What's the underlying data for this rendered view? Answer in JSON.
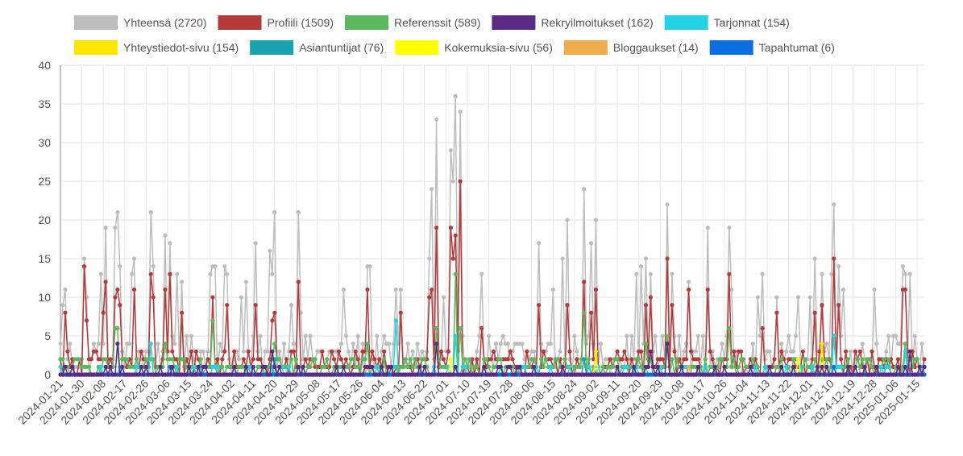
{
  "chart_data": {
    "type": "line",
    "title": "",
    "xlabel": "",
    "ylabel": "",
    "ylim": [
      0,
      40
    ],
    "y_ticks": [
      "0",
      "5",
      "10",
      "15",
      "20",
      "25",
      "30",
      "35",
      "40"
    ],
    "grid": true,
    "legend_position": "top",
    "x_start": "2024-01-21",
    "x_end": "2025-01-18",
    "x_tick_labels": [
      "2024-01-21",
      "2024-01-30",
      "2024-02-08",
      "2024-02-17",
      "2024-02-26",
      "2024-03-06",
      "2024-03-15",
      "2024-03-24",
      "2024-04-02",
      "2024-04-11",
      "2024-04-20",
      "2024-04-29",
      "2024-05-08",
      "2024-05-17",
      "2024-05-26",
      "2024-06-04",
      "2024-06-13",
      "2024-06-22",
      "2024-07-01",
      "2024-07-10",
      "2024-07-19",
      "2024-07-28",
      "2024-08-06",
      "2024-08-15",
      "2024-08-24",
      "2024-09-02",
      "2024-09-11",
      "2024-09-20",
      "2024-09-29",
      "2024-10-08",
      "2024-10-17",
      "2024-10-26",
      "2024-11-04",
      "2024-11-13",
      "2024-11-22",
      "2024-12-01",
      "2024-12-10",
      "2024-12-19",
      "2024-12-28",
      "2025-01-06",
      "2025-01-15"
    ],
    "series": [
      {
        "name": "Yhteensä (2720)",
        "color": "#bdbdbd",
        "peaks": [
          [
            "2024-01-22",
            9
          ],
          [
            "2024-01-23",
            11
          ],
          [
            "2024-01-31",
            15
          ],
          [
            "2024-02-01",
            10
          ],
          [
            "2024-02-07",
            13
          ],
          [
            "2024-02-09",
            19
          ],
          [
            "2024-02-13",
            19
          ],
          [
            "2024-02-14",
            21
          ],
          [
            "2024-02-15",
            14
          ],
          [
            "2024-02-20",
            13
          ],
          [
            "2024-02-21",
            15
          ],
          [
            "2024-02-28",
            21
          ],
          [
            "2024-02-29",
            14
          ],
          [
            "2024-03-05",
            18
          ],
          [
            "2024-03-07",
            17
          ],
          [
            "2024-03-10",
            13
          ],
          [
            "2024-03-12",
            12
          ],
          [
            "2024-03-24",
            13
          ],
          [
            "2024-03-25",
            14
          ],
          [
            "2024-03-26",
            14
          ],
          [
            "2024-03-30",
            14
          ],
          [
            "2024-03-31",
            13
          ],
          [
            "2024-04-06",
            10
          ],
          [
            "2024-04-08",
            12
          ],
          [
            "2024-04-12",
            17
          ],
          [
            "2024-04-18",
            16
          ],
          [
            "2024-04-19",
            13
          ],
          [
            "2024-04-20",
            21
          ],
          [
            "2024-04-27",
            9
          ],
          [
            "2024-04-30",
            21
          ],
          [
            "2024-05-01",
            8
          ],
          [
            "2024-05-19",
            11
          ],
          [
            "2024-05-29",
            14
          ],
          [
            "2024-05-30",
            14
          ],
          [
            "2024-06-10",
            11
          ],
          [
            "2024-06-12",
            11
          ],
          [
            "2024-06-24",
            15
          ],
          [
            "2024-06-25",
            24
          ],
          [
            "2024-06-27",
            33
          ],
          [
            "2024-06-30",
            10
          ],
          [
            "2024-07-03",
            29
          ],
          [
            "2024-07-04",
            25
          ],
          [
            "2024-07-05",
            36
          ],
          [
            "2024-07-07",
            34
          ],
          [
            "2024-07-16",
            13
          ],
          [
            "2024-08-09",
            17
          ],
          [
            "2024-08-15",
            11
          ],
          [
            "2024-08-19",
            15
          ],
          [
            "2024-08-21",
            20
          ],
          [
            "2024-08-28",
            24
          ],
          [
            "2024-08-31",
            17
          ],
          [
            "2024-09-02",
            20
          ],
          [
            "2024-09-19",
            13
          ],
          [
            "2024-09-21",
            14
          ],
          [
            "2024-09-23",
            15
          ],
          [
            "2024-09-25",
            13
          ],
          [
            "2024-10-02",
            22
          ],
          [
            "2024-10-04",
            13
          ],
          [
            "2024-10-11",
            12
          ],
          [
            "2024-10-19",
            19
          ],
          [
            "2024-10-28",
            19
          ],
          [
            "2024-10-29",
            11
          ],
          [
            "2024-11-09",
            10
          ],
          [
            "2024-11-11",
            13
          ],
          [
            "2024-11-17",
            10
          ],
          [
            "2024-11-26",
            10
          ],
          [
            "2024-12-01",
            10
          ],
          [
            "2024-12-03",
            15
          ],
          [
            "2024-12-06",
            13
          ],
          [
            "2024-12-10",
            13
          ],
          [
            "2024-12-11",
            22
          ],
          [
            "2024-12-13",
            14
          ],
          [
            "2024-12-15",
            11
          ],
          [
            "2024-12-28",
            11
          ],
          [
            "2025-01-09",
            14
          ],
          [
            "2025-01-10",
            13
          ],
          [
            "2025-01-12",
            13
          ]
        ]
      },
      {
        "name": "Profiili (1509)",
        "color": "#b53b3b",
        "peaks": [
          [
            "2024-01-23",
            8
          ],
          [
            "2024-01-31",
            14
          ],
          [
            "2024-02-01",
            7
          ],
          [
            "2024-02-08",
            8
          ],
          [
            "2024-02-09",
            12
          ],
          [
            "2024-02-13",
            10
          ],
          [
            "2024-02-14",
            11
          ],
          [
            "2024-02-15",
            9
          ],
          [
            "2024-02-21",
            11
          ],
          [
            "2024-02-28",
            13
          ],
          [
            "2024-02-29",
            10
          ],
          [
            "2024-03-05",
            11
          ],
          [
            "2024-03-07",
            13
          ],
          [
            "2024-03-12",
            8
          ],
          [
            "2024-03-25",
            10
          ],
          [
            "2024-03-31",
            9
          ],
          [
            "2024-04-12",
            9
          ],
          [
            "2024-04-19",
            7
          ],
          [
            "2024-04-20",
            8
          ],
          [
            "2024-04-30",
            12
          ],
          [
            "2024-05-29",
            11
          ],
          [
            "2024-06-12",
            8
          ],
          [
            "2024-06-24",
            10
          ],
          [
            "2024-06-25",
            11
          ],
          [
            "2024-06-27",
            19
          ],
          [
            "2024-07-03",
            19
          ],
          [
            "2024-07-04",
            15
          ],
          [
            "2024-07-05",
            18
          ],
          [
            "2024-07-07",
            25
          ],
          [
            "2024-07-16",
            6
          ],
          [
            "2024-08-09",
            9
          ],
          [
            "2024-08-21",
            9
          ],
          [
            "2024-08-28",
            12
          ],
          [
            "2024-08-31",
            8
          ],
          [
            "2024-09-02",
            11
          ],
          [
            "2024-09-23",
            9
          ],
          [
            "2024-09-25",
            10
          ],
          [
            "2024-10-02",
            15
          ],
          [
            "2024-10-04",
            9
          ],
          [
            "2024-10-11",
            11
          ],
          [
            "2024-10-19",
            11
          ],
          [
            "2024-10-28",
            13
          ],
          [
            "2024-11-11",
            6
          ],
          [
            "2024-11-17",
            8
          ],
          [
            "2024-12-03",
            8
          ],
          [
            "2024-12-06",
            9
          ],
          [
            "2024-12-11",
            15
          ],
          [
            "2024-12-13",
            9
          ],
          [
            "2025-01-09",
            11
          ],
          [
            "2025-01-10",
            11
          ]
        ]
      },
      {
        "name": "Referenssit (589)",
        "color": "#5cb85c",
        "peaks": [
          [
            "2024-02-13",
            6
          ],
          [
            "2024-02-14",
            6
          ],
          [
            "2024-03-05",
            4
          ],
          [
            "2024-03-25",
            7
          ],
          [
            "2024-04-20",
            4
          ],
          [
            "2024-05-29",
            4
          ],
          [
            "2024-06-27",
            6
          ],
          [
            "2024-07-05",
            13
          ],
          [
            "2024-07-07",
            6
          ],
          [
            "2024-08-28",
            8
          ],
          [
            "2024-09-23",
            4
          ],
          [
            "2024-10-02",
            5
          ],
          [
            "2024-10-28",
            6
          ],
          [
            "2024-12-11",
            5
          ],
          [
            "2025-01-10",
            4
          ]
        ]
      },
      {
        "name": "Rekryilmoitukset (162)",
        "color": "#5b2a86",
        "peaks": [
          [
            "2024-02-14",
            4
          ],
          [
            "2024-04-19",
            3
          ],
          [
            "2024-06-27",
            4
          ],
          [
            "2024-09-25",
            3
          ],
          [
            "2024-10-02",
            4
          ],
          [
            "2025-01-12",
            3
          ]
        ]
      },
      {
        "name": "Tarjonnat (154)",
        "color": "#22d3e6",
        "peaks": [
          [
            "2024-02-28",
            4
          ],
          [
            "2024-06-10",
            7
          ],
          [
            "2024-07-05",
            5
          ],
          [
            "2024-12-11",
            5
          ],
          [
            "2025-01-10",
            3
          ]
        ]
      },
      {
        "name": "Yhteystiedot-sivu (154)",
        "color": "#ffe600",
        "peaks": [
          [
            "2024-06-27",
            4
          ],
          [
            "2024-09-02",
            3
          ],
          [
            "2024-12-06",
            4
          ]
        ]
      },
      {
        "name": "Asiantuntijat (76)",
        "color": "#1aa3ad",
        "peaks": [
          [
            "2024-04-20",
            2
          ],
          [
            "2024-08-28",
            2
          ]
        ]
      },
      {
        "name": "Kokemuksia-sivu (56)",
        "color": "#ffff00",
        "peaks": [
          [
            "2024-07-03",
            2
          ],
          [
            "2024-11-26",
            2
          ]
        ]
      },
      {
        "name": "Bloggaukset (14)",
        "color": "#f0ad4e",
        "peaks": [
          [
            "2024-05-29",
            1
          ],
          [
            "2024-10-11",
            1
          ]
        ]
      },
      {
        "name": "Tapahtumat (6)",
        "color": "#0b6fe0",
        "peaks": [
          [
            "2024-03-07",
            1
          ],
          [
            "2024-12-11",
            1
          ]
        ]
      }
    ]
  }
}
